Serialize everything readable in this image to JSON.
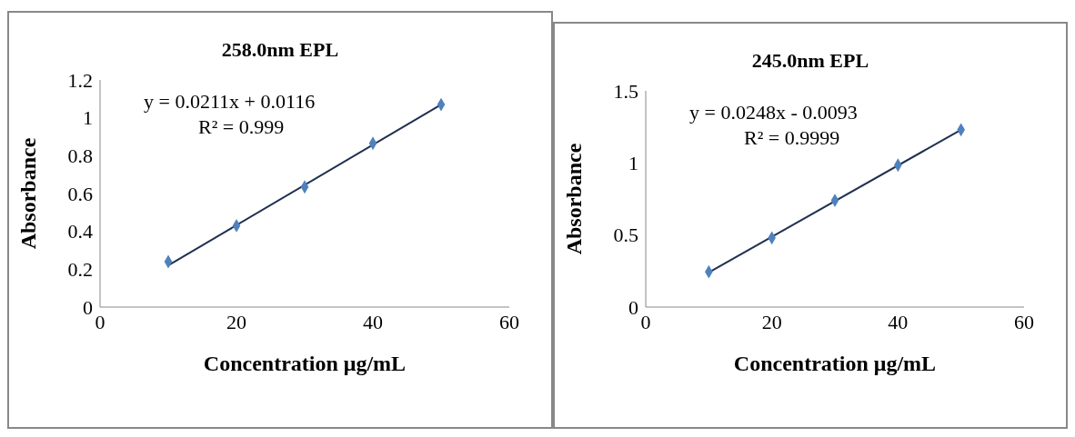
{
  "chart_data": [
    {
      "type": "scatter",
      "title": "258.0nm EPL",
      "xlabel": "Concentration μg/mL",
      "ylabel": "Absorbance",
      "xlim": [
        0,
        60
      ],
      "xticks": [
        0,
        20,
        40,
        60
      ],
      "ylim": [
        0,
        1.2
      ],
      "yticks": [
        0,
        0.2,
        0.4,
        0.6,
        0.8,
        1,
        1.2
      ],
      "grid": false,
      "series": [
        {
          "color": "#4f81bd",
          "marker": "diamond",
          "x": [
            10,
            20,
            30,
            40,
            50
          ],
          "values": [
            0.24,
            0.43,
            0.635,
            0.865,
            1.07
          ]
        },
        {
          "type": "line",
          "marker": "none",
          "color": "#1f3050",
          "x": [
            10,
            50
          ],
          "values": [
            0.22,
            1.07
          ]
        }
      ],
      "annotations": [
        "y = 0.0211x  + 0.0116",
        "R² = 0.999"
      ]
    },
    {
      "type": "scatter",
      "title": "245.0nm EPL",
      "xlabel": "Concentration μg/mL",
      "ylabel": "Absorbance",
      "xlim": [
        0,
        60
      ],
      "xticks": [
        0,
        20,
        40,
        60
      ],
      "ylim": [
        0,
        1.5
      ],
      "yticks": [
        0,
        0.5,
        1,
        1.5
      ],
      "grid": false,
      "series": [
        {
          "color": "#4f81bd",
          "marker": "diamond",
          "x": [
            10,
            20,
            30,
            40,
            50
          ],
          "values": [
            0.245,
            0.48,
            0.74,
            0.985,
            1.23
          ]
        },
        {
          "type": "line",
          "marker": "none",
          "color": "#1f3050",
          "x": [
            10,
            50
          ],
          "values": [
            0.24,
            1.23
          ]
        }
      ],
      "annotations": [
        "y = 0.0248x  - 0.0093",
        "R² = 0.9999"
      ]
    }
  ]
}
